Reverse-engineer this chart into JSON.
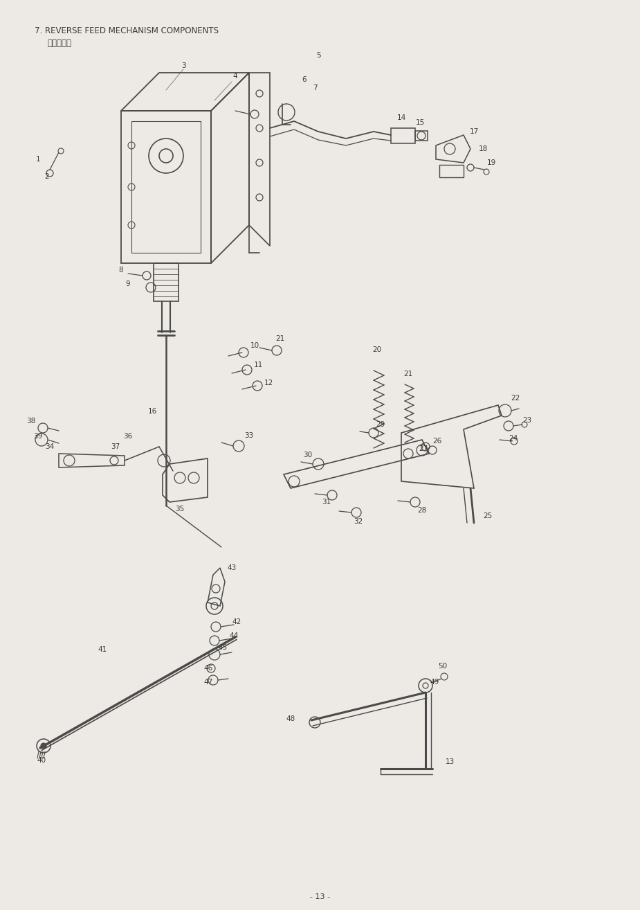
{
  "title": "7. REVERSE FEED MECHANISM COMPONENTS",
  "subtitle": "逆送り関係",
  "page_number": "- 13 -",
  "bg_color": "#ede9e4",
  "text_color": "#3a3a3a",
  "line_color": "#4a4a4a",
  "figsize": [
    9.25,
    13.14
  ],
  "dpi": 100
}
